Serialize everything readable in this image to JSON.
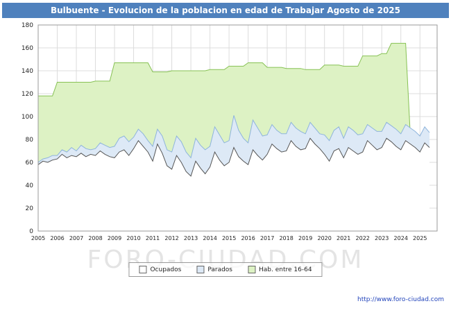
{
  "header": {
    "title": "Bulbuente - Evolucion de la poblacion en edad de Trabajar Agosto de 2025",
    "bg": "#4f81bd"
  },
  "watermark": "FORO-CIUDAD.COM",
  "footer": {
    "url": "http://www.foro-ciudad.com"
  },
  "legend": [
    {
      "label": "Ocupados",
      "fill": "#ffffff"
    },
    {
      "label": "Parados",
      "fill": "#dde9f6"
    },
    {
      "label": "Hab. entre 16-64",
      "fill": "#ddf2c4"
    }
  ],
  "chart_data": {
    "type": "area",
    "title": "Bulbuente - Evolucion de la poblacion en edad de Trabajar Agosto de 2025",
    "xlabel": "",
    "ylabel": "",
    "xlim": [
      2005,
      2025.9
    ],
    "ylim": [
      0,
      180
    ],
    "x_start": 2005,
    "x_step": 0.25,
    "grid": true,
    "legend_position": "bottom",
    "x_ticks": [
      2005,
      2006,
      2007,
      2008,
      2009,
      2010,
      2011,
      2012,
      2013,
      2014,
      2015,
      2016,
      2017,
      2018,
      2019,
      2020,
      2021,
      2022,
      2023,
      2024,
      2025
    ],
    "y_ticks": [
      0,
      20,
      40,
      60,
      80,
      100,
      120,
      140,
      160,
      180
    ],
    "series": [
      {
        "id": "hab-16-64",
        "name": "Hab. entre 16-64",
        "fill": "#ddf2c4",
        "stroke": "#86c153",
        "values": [
          118,
          118,
          118,
          118,
          130,
          130,
          130,
          130,
          130,
          130,
          130,
          130,
          131,
          131,
          131,
          131,
          147,
          147,
          147,
          147,
          147,
          147,
          147,
          147,
          139,
          139,
          139,
          139,
          140,
          140,
          140,
          140,
          140,
          140,
          140,
          140,
          141,
          141,
          141,
          141,
          144,
          144,
          144,
          144,
          147,
          147,
          147,
          147,
          143,
          143,
          143,
          143,
          142,
          142,
          142,
          142,
          141,
          141,
          141,
          141,
          145,
          145,
          145,
          145,
          144,
          144,
          144,
          144,
          153,
          153,
          153,
          153,
          155,
          155,
          164,
          164,
          164,
          164,
          82,
          82,
          82,
          84,
          82
        ]
      },
      {
        "id": "parados",
        "name": "Parados",
        "fill": "#dde9f6",
        "stroke": "#8eb4dc",
        "values": [
          60,
          63,
          64,
          66,
          66,
          71,
          69,
          73,
          70,
          75,
          72,
          71,
          72,
          77,
          75,
          73,
          74,
          81,
          83,
          78,
          82,
          89,
          85,
          79,
          74,
          89,
          83,
          71,
          69,
          83,
          78,
          69,
          64,
          81,
          75,
          71,
          74,
          91,
          84,
          77,
          79,
          101,
          88,
          81,
          77,
          97,
          90,
          83,
          84,
          93,
          88,
          85,
          85,
          95,
          90,
          87,
          85,
          95,
          90,
          85,
          84,
          79,
          88,
          91,
          81,
          91,
          88,
          84,
          85,
          93,
          90,
          87,
          87,
          95,
          92,
          89,
          85,
          93,
          90,
          87,
          83,
          91,
          86
        ]
      },
      {
        "id": "ocupados",
        "name": "Ocupados",
        "fill": "#ffffff",
        "stroke": "#555555",
        "values": [
          58,
          61,
          60,
          62,
          63,
          67,
          64,
          66,
          65,
          68,
          65,
          67,
          66,
          70,
          67,
          65,
          64,
          69,
          71,
          66,
          72,
          79,
          74,
          69,
          61,
          76,
          68,
          57,
          54,
          66,
          60,
          52,
          48,
          61,
          55,
          50,
          56,
          69,
          62,
          57,
          60,
          73,
          65,
          61,
          58,
          71,
          66,
          62,
          67,
          76,
          72,
          69,
          70,
          79,
          74,
          71,
          72,
          81,
          76,
          72,
          67,
          61,
          70,
          72,
          64,
          73,
          70,
          67,
          69,
          79,
          75,
          71,
          73,
          81,
          78,
          74,
          71,
          79,
          76,
          73,
          69,
          77,
          73
        ]
      }
    ]
  }
}
